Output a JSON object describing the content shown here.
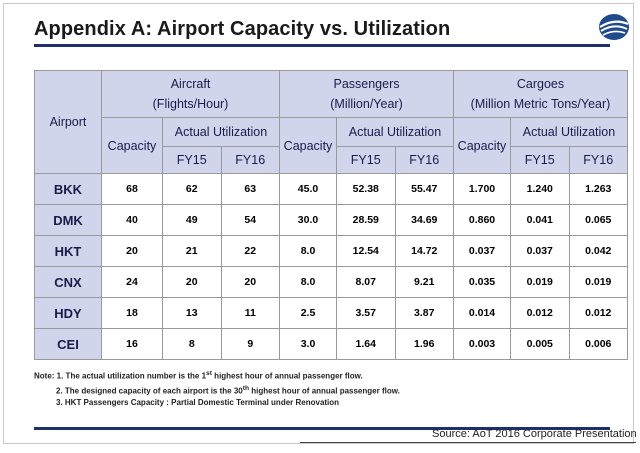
{
  "title": "Appendix A:  Airport Capacity vs. Utilization",
  "logo_icon": "airline-swoosh-logo",
  "table": {
    "airport_header": "Airport",
    "groups": [
      {
        "line1": "Aircraft",
        "line2": "(Flights/Hour)"
      },
      {
        "line1": "Passengers",
        "line2": "(Million/Year)"
      },
      {
        "line1": "Cargoes",
        "line2": "(Million Metric Tons/Year)"
      }
    ],
    "capacity_label": "Capacity",
    "actual_label": "Actual Utilization",
    "fy15": "FY15",
    "fy16": "FY16",
    "rows": [
      {
        "airport": "BKK",
        "a_cap": "68",
        "a15": "62",
        "a16": "63",
        "p_cap": "45.0",
        "p15": "52.38",
        "p16": "55.47",
        "c_cap": "1.700",
        "c15": "1.240",
        "c16": "1.263"
      },
      {
        "airport": "DMK",
        "a_cap": "40",
        "a15": "49",
        "a16": "54",
        "p_cap": "30.0",
        "p15": "28.59",
        "p16": "34.69",
        "c_cap": "0.860",
        "c15": "0.041",
        "c16": "0.065"
      },
      {
        "airport": "HKT",
        "a_cap": "20",
        "a15": "21",
        "a16": "22",
        "p_cap": "8.0",
        "p15": "12.54",
        "p16": "14.72",
        "c_cap": "0.037",
        "c15": "0.037",
        "c16": "0.042"
      },
      {
        "airport": "CNX",
        "a_cap": "24",
        "a15": "20",
        "a16": "20",
        "p_cap": "8.0",
        "p15": "8.07",
        "p16": "9.21",
        "c_cap": "0.035",
        "c15": "0.019",
        "c16": "0.019"
      },
      {
        "airport": "HDY",
        "a_cap": "18",
        "a15": "13",
        "a16": "11",
        "p_cap": "2.5",
        "p15": "3.57",
        "p16": "3.87",
        "c_cap": "0.014",
        "c15": "0.012",
        "c16": "0.012"
      },
      {
        "airport": "CEI",
        "a_cap": "16",
        "a15": "8",
        "a16": "9",
        "p_cap": "3.0",
        "p15": "1.64",
        "p16": "1.96",
        "c_cap": "0.003",
        "c15": "0.005",
        "c16": "0.006"
      }
    ]
  },
  "notes": {
    "n1_pre": "Note: 1. The actual utilization number is the 1",
    "n1_sup": "st",
    "n1_post": " highest hour of annual passenger flow.",
    "n2_pre": "2. The designed capacity of each airport is the 30",
    "n2_sup": "th",
    "n2_post": " highest hour of annual passenger flow.",
    "n3": "3. HKT Passengers Capacity : Partial Domestic Terminal under Renovation"
  },
  "source": "Source: AoT 2016 Corporate Presentation"
}
